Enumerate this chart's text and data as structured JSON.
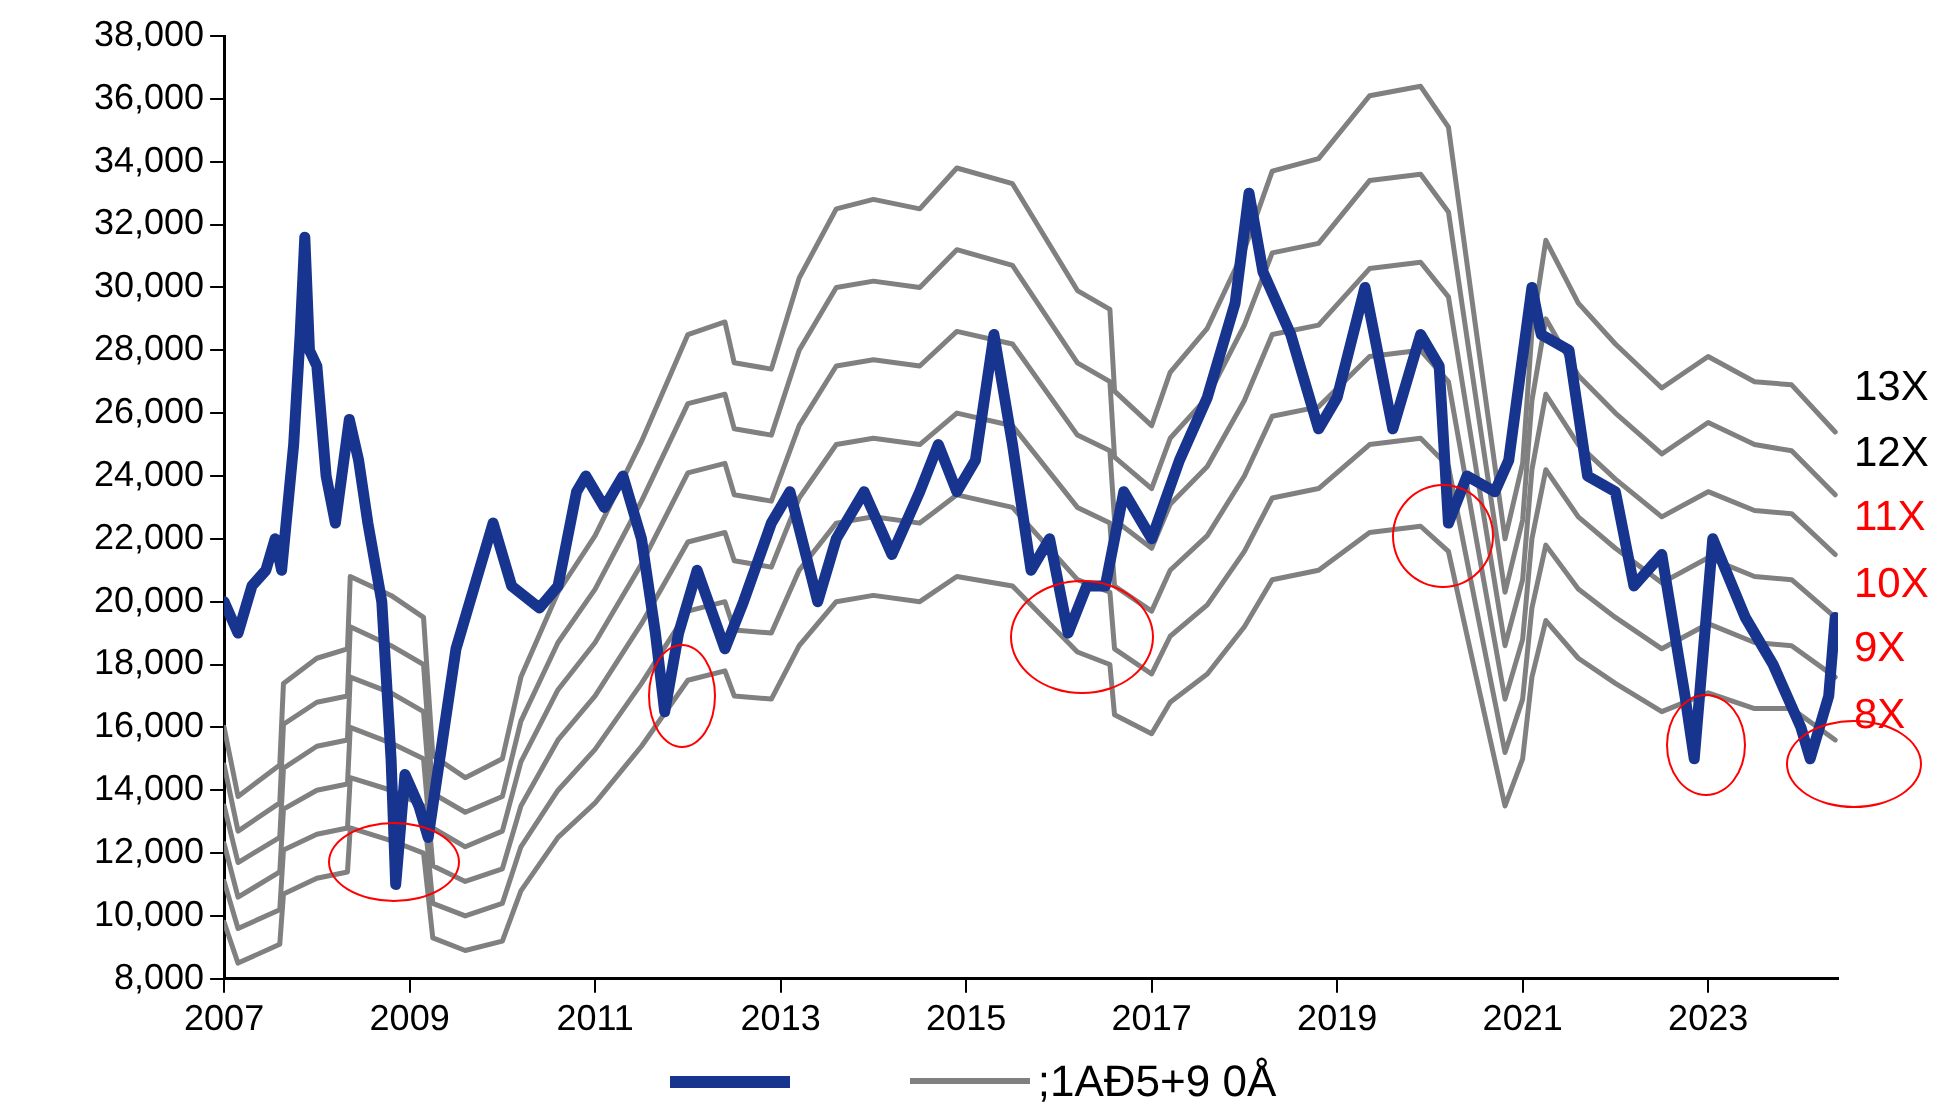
{
  "chart_data": {
    "type": "line",
    "xlim": [
      2007,
      2024.4
    ],
    "xticks": [
      2007,
      2009,
      2011,
      2013,
      2015,
      2017,
      2019,
      2021,
      2023
    ],
    "ylim": [
      8000,
      38000
    ],
    "yticks": [
      {
        "value": 8000,
        "label": "8,000"
      },
      {
        "value": 10000,
        "label": "10,000"
      },
      {
        "value": 12000,
        "label": "12,000"
      },
      {
        "value": 14000,
        "label": "14,000"
      },
      {
        "value": 16000,
        "label": "16,000"
      },
      {
        "value": 18000,
        "label": "18,000"
      },
      {
        "value": 20000,
        "label": "20,000"
      },
      {
        "value": 22000,
        "label": "22,000"
      },
      {
        "value": 24000,
        "label": "24,000"
      },
      {
        "value": 26000,
        "label": "26,000"
      },
      {
        "value": 28000,
        "label": "28,000"
      },
      {
        "value": 30000,
        "label": "30,000"
      },
      {
        "value": 32000,
        "label": "32,000"
      },
      {
        "value": 34000,
        "label": "34,000"
      },
      {
        "value": 36000,
        "label": "36,000"
      },
      {
        "value": 38000,
        "label": "38,000"
      }
    ],
    "grid": false,
    "legend": "bottom",
    "marker": "none",
    "line_style": "solid",
    "annotations": [
      ";1AĐ5+9 0Å"
    ],
    "series": [
      {
        "name": "8X",
        "color": "#808080",
        "x": [
          2007.0,
          2007.15,
          2007.6,
          2007.64,
          2008.0,
          2008.33,
          2008.36,
          2008.8,
          2009.15,
          2009.25,
          2009.6,
          2010.0,
          2010.2,
          2010.6,
          2011.0,
          2011.5,
          2012.0,
          2012.4,
          2012.5,
          2012.9,
          2013.2,
          2013.6,
          2014.0,
          2014.5,
          2014.9,
          2015.5,
          2016.2,
          2016.55,
          2016.6,
          2017.0,
          2017.2,
          2017.6,
          2018.0,
          2018.3,
          2018.8,
          2019.35,
          2019.9,
          2020.2,
          2020.5,
          2020.81,
          2021.0,
          2021.1,
          2021.25,
          2021.6,
          2022.0,
          2022.5,
          2023.0,
          2023.5,
          2023.9,
          2024.37
        ],
        "values": [
          9800,
          8500,
          9100,
          10700,
          11200,
          11400,
          12800,
          12400,
          12000,
          9300,
          8900,
          9200,
          10800,
          12500,
          13600,
          15400,
          17500,
          17800,
          17000,
          16900,
          18600,
          20000,
          20200,
          20000,
          20800,
          20500,
          18400,
          18000,
          16400,
          15800,
          16800,
          17700,
          19200,
          20700,
          21000,
          22200,
          22400,
          21600,
          17600,
          13500,
          15000,
          17600,
          19400,
          18200,
          17400,
          16500,
          17100,
          16600,
          16600,
          15600
        ]
      },
      {
        "name": "9X",
        "color": "#808080",
        "x": [
          2007.0,
          2007.15,
          2007.6,
          2007.64,
          2008.0,
          2008.33,
          2008.36,
          2008.8,
          2009.15,
          2009.25,
          2009.6,
          2010.0,
          2010.2,
          2010.6,
          2011.0,
          2011.5,
          2012.0,
          2012.4,
          2012.5,
          2012.9,
          2013.2,
          2013.6,
          2014.0,
          2014.5,
          2014.9,
          2015.5,
          2016.2,
          2016.55,
          2016.6,
          2017.0,
          2017.2,
          2017.6,
          2018.0,
          2018.3,
          2018.8,
          2019.35,
          2019.9,
          2020.2,
          2020.5,
          2020.81,
          2021.0,
          2021.1,
          2021.25,
          2021.6,
          2022.0,
          2022.5,
          2023.0,
          2023.5,
          2023.9,
          2024.37
        ],
        "values": [
          11100,
          9600,
          10200,
          12100,
          12600,
          12800,
          14400,
          14000,
          13500,
          10400,
          10000,
          10400,
          12200,
          14000,
          15300,
          17400,
          19700,
          20000,
          19100,
          19000,
          21000,
          22500,
          22700,
          22500,
          23400,
          23000,
          20700,
          20300,
          18500,
          17700,
          18900,
          19900,
          21600,
          23300,
          23600,
          25000,
          25200,
          24300,
          19800,
          15200,
          16900,
          19800,
          21800,
          20400,
          19500,
          18500,
          19300,
          18700,
          18600,
          17600
        ]
      },
      {
        "name": "10X",
        "color": "#808080",
        "x": [
          2007.0,
          2007.15,
          2007.6,
          2007.64,
          2008.0,
          2008.33,
          2008.36,
          2008.8,
          2009.15,
          2009.25,
          2009.6,
          2010.0,
          2010.2,
          2010.6,
          2011.0,
          2011.5,
          2012.0,
          2012.4,
          2012.5,
          2012.9,
          2013.2,
          2013.6,
          2014.0,
          2014.5,
          2014.9,
          2015.5,
          2016.2,
          2016.55,
          2016.6,
          2017.0,
          2017.2,
          2017.6,
          2018.0,
          2018.3,
          2018.8,
          2019.35,
          2019.9,
          2020.2,
          2020.5,
          2020.81,
          2021.0,
          2021.1,
          2021.25,
          2021.6,
          2022.0,
          2022.5,
          2023.0,
          2023.5,
          2023.9,
          2024.37
        ],
        "values": [
          12300,
          10600,
          11400,
          13400,
          14000,
          14200,
          16000,
          15500,
          15000,
          11600,
          11100,
          11500,
          13500,
          15600,
          17000,
          19300,
          21900,
          22200,
          21300,
          21100,
          23300,
          25000,
          25200,
          25000,
          26000,
          25600,
          23000,
          22500,
          20500,
          19700,
          21000,
          22100,
          24000,
          25900,
          26200,
          27800,
          28000,
          27000,
          22000,
          16900,
          18800,
          22000,
          24200,
          22700,
          21700,
          20600,
          21400,
          20800,
          20700,
          19500
        ]
      },
      {
        "name": "11X",
        "color": "#808080",
        "x": [
          2007.0,
          2007.15,
          2007.6,
          2007.64,
          2008.0,
          2008.33,
          2008.36,
          2008.8,
          2009.15,
          2009.25,
          2009.6,
          2010.0,
          2010.2,
          2010.6,
          2011.0,
          2011.5,
          2012.0,
          2012.4,
          2012.5,
          2012.9,
          2013.2,
          2013.6,
          2014.0,
          2014.5,
          2014.9,
          2015.5,
          2016.2,
          2016.55,
          2016.6,
          2017.0,
          2017.2,
          2017.6,
          2018.0,
          2018.3,
          2018.8,
          2019.35,
          2019.9,
          2020.2,
          2020.5,
          2020.81,
          2021.0,
          2021.1,
          2021.25,
          2021.6,
          2022.0,
          2022.5,
          2023.0,
          2023.5,
          2023.9,
          2024.37
        ],
        "values": [
          13500,
          11700,
          12500,
          14700,
          15400,
          15600,
          17600,
          17100,
          16500,
          12800,
          12200,
          12700,
          14900,
          17200,
          18700,
          21200,
          24100,
          24400,
          23400,
          23200,
          25600,
          27500,
          27700,
          27500,
          28600,
          28200,
          25300,
          24800,
          22600,
          21700,
          23100,
          24300,
          26400,
          28500,
          28800,
          30600,
          30800,
          29700,
          24200,
          18600,
          20700,
          24200,
          26600,
          25000,
          23900,
          22700,
          23500,
          22900,
          22800,
          21500
        ]
      },
      {
        "name": "12X",
        "color": "#808080",
        "x": [
          2007.0,
          2007.15,
          2007.6,
          2007.64,
          2008.0,
          2008.33,
          2008.36,
          2008.8,
          2009.15,
          2009.25,
          2009.6,
          2010.0,
          2010.2,
          2010.6,
          2011.0,
          2011.5,
          2012.0,
          2012.4,
          2012.5,
          2012.9,
          2013.2,
          2013.6,
          2014.0,
          2014.5,
          2014.9,
          2015.5,
          2016.2,
          2016.55,
          2016.6,
          2017.0,
          2017.2,
          2017.6,
          2018.0,
          2018.3,
          2018.8,
          2019.35,
          2019.9,
          2020.2,
          2020.5,
          2020.81,
          2021.0,
          2021.1,
          2021.25,
          2021.6,
          2022.0,
          2022.5,
          2023.0,
          2023.5,
          2023.9,
          2024.37
        ],
        "values": [
          14800,
          12700,
          13600,
          16100,
          16800,
          17000,
          19200,
          18600,
          18000,
          13900,
          13300,
          13800,
          16200,
          18700,
          20400,
          23200,
          26300,
          26600,
          25500,
          25300,
          28000,
          30000,
          30200,
          30000,
          31200,
          30700,
          27600,
          27000,
          24600,
          23600,
          25200,
          26500,
          28800,
          31100,
          31400,
          33400,
          33600,
          32400,
          26400,
          20300,
          22600,
          26400,
          29000,
          27200,
          26000,
          24700,
          25700,
          25000,
          24800,
          23400
        ]
      },
      {
        "name": "13X",
        "color": "#808080",
        "x": [
          2007.0,
          2007.15,
          2007.6,
          2007.64,
          2008.0,
          2008.33,
          2008.36,
          2008.8,
          2009.15,
          2009.25,
          2009.6,
          2010.0,
          2010.2,
          2010.6,
          2011.0,
          2011.5,
          2012.0,
          2012.4,
          2012.5,
          2012.9,
          2013.2,
          2013.6,
          2014.0,
          2014.5,
          2014.9,
          2015.5,
          2016.2,
          2016.55,
          2016.6,
          2017.0,
          2017.2,
          2017.6,
          2018.0,
          2018.3,
          2018.8,
          2019.35,
          2019.9,
          2020.2,
          2020.5,
          2020.81,
          2021.0,
          2021.1,
          2021.25,
          2021.6,
          2022.0,
          2022.5,
          2023.0,
          2023.5,
          2023.9,
          2024.37
        ],
        "values": [
          16000,
          13800,
          14800,
          17400,
          18200,
          18500,
          20800,
          20200,
          19500,
          15100,
          14400,
          15000,
          17600,
          20300,
          22100,
          25100,
          28500,
          28900,
          27600,
          27400,
          30300,
          32500,
          32800,
          32500,
          33800,
          33300,
          29900,
          29300,
          26700,
          25600,
          27300,
          28700,
          31200,
          33700,
          34100,
          36100,
          36400,
          35100,
          28600,
          22000,
          24400,
          28600,
          31500,
          29500,
          28200,
          26800,
          27800,
          27000,
          26900,
          25400
        ]
      },
      {
        "color": "#17348f",
        "x": [
          2007.0,
          2007.15,
          2007.3,
          2007.45,
          2007.55,
          2007.62,
          2007.75,
          2007.82,
          2007.87,
          2007.92,
          2008.0,
          2008.1,
          2008.2,
          2008.35,
          2008.45,
          2008.55,
          2008.7,
          2008.8,
          2008.85,
          2008.95,
          2009.1,
          2009.2,
          2009.35,
          2009.5,
          2009.7,
          2009.9,
          2010.1,
          2010.4,
          2010.6,
          2010.8,
          2010.9,
          2011.1,
          2011.3,
          2011.5,
          2011.65,
          2011.75,
          2011.9,
          2012.1,
          2012.4,
          2012.6,
          2012.9,
          2013.1,
          2013.4,
          2013.6,
          2013.9,
          2014.2,
          2014.5,
          2014.7,
          2014.9,
          2015.1,
          2015.3,
          2015.5,
          2015.7,
          2015.9,
          2016.1,
          2016.3,
          2016.5,
          2016.7,
          2016.9,
          2017.0,
          2017.3,
          2017.6,
          2017.9,
          2018.05,
          2018.2,
          2018.5,
          2018.8,
          2019.0,
          2019.3,
          2019.6,
          2019.9,
          2020.1,
          2020.2,
          2020.4,
          2020.7,
          2020.85,
          2021.1,
          2021.2,
          2021.5,
          2021.7,
          2022.0,
          2022.2,
          2022.5,
          2022.75,
          2022.85,
          2023.05,
          2023.4,
          2023.7,
          2024.0,
          2024.1,
          2024.3,
          2024.37
        ],
        "values": [
          20000,
          19000,
          20500,
          21000,
          22000,
          21000,
          25000,
          28500,
          31600,
          28000,
          27500,
          24000,
          22500,
          25800,
          24500,
          22500,
          20000,
          15000,
          11000,
          14500,
          13500,
          12500,
          15500,
          18500,
          20500,
          22500,
          20500,
          19800,
          20500,
          23500,
          24000,
          23000,
          24000,
          22000,
          19000,
          16500,
          19000,
          21000,
          18500,
          20000,
          22500,
          23500,
          20000,
          22000,
          23500,
          21500,
          23500,
          25000,
          23500,
          24500,
          28500,
          25000,
          21000,
          22000,
          19000,
          20500,
          20500,
          23500,
          22500,
          22000,
          24500,
          26500,
          29500,
          33000,
          30500,
          28500,
          25500,
          26500,
          30000,
          25500,
          28500,
          27500,
          22500,
          24000,
          23500,
          24500,
          30000,
          28500,
          28000,
          24000,
          23500,
          20500,
          21500,
          17000,
          15000,
          22000,
          19500,
          18000,
          16000,
          15000,
          17000,
          19500
        ]
      }
    ]
  }
}
